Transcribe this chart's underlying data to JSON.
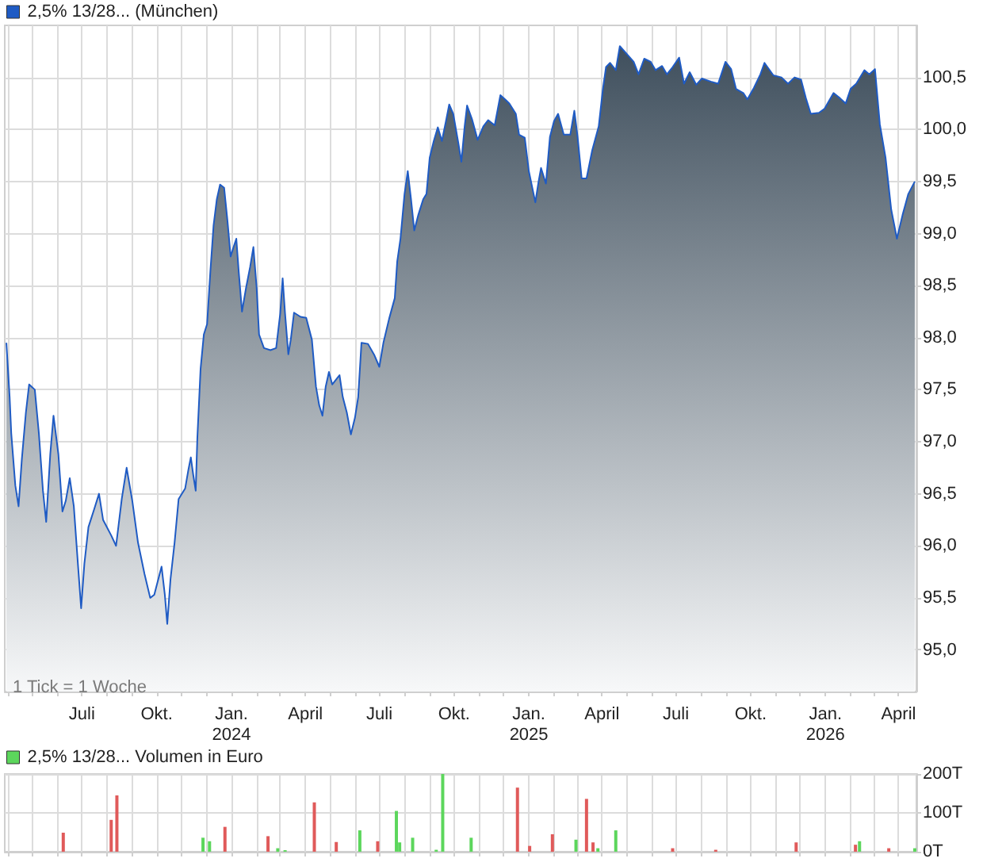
{
  "chart_data": [
    {
      "type": "area",
      "legend": "top left",
      "grid": true,
      "marker": "none",
      "annotations": [
        "1 Tick = 1 Woche"
      ],
      "xlim": [
        "2023-03-28",
        "2026-04-23"
      ],
      "xticks": [
        {
          "value": "2023-04-01",
          "label": null
        },
        {
          "value": "2023-05-01",
          "label": null
        },
        {
          "value": "2023-06-01",
          "label": null
        },
        {
          "value": "2023-07-01",
          "label": "Juli"
        },
        {
          "value": "2023-08-01",
          "label": null
        },
        {
          "value": "2023-09-01",
          "label": null
        },
        {
          "value": "2023-10-01",
          "label": "Okt."
        },
        {
          "value": "2023-11-01",
          "label": null
        },
        {
          "value": "2023-12-01",
          "label": null
        },
        {
          "value": "2024-01-01",
          "label": "Jan.\n2024"
        },
        {
          "value": "2024-02-01",
          "label": null
        },
        {
          "value": "2024-03-01",
          "label": null
        },
        {
          "value": "2024-04-01",
          "label": "April"
        },
        {
          "value": "2024-05-01",
          "label": null
        },
        {
          "value": "2024-06-01",
          "label": null
        },
        {
          "value": "2024-07-01",
          "label": "Juli"
        },
        {
          "value": "2024-08-01",
          "label": null
        },
        {
          "value": "2024-09-01",
          "label": null
        },
        {
          "value": "2024-10-01",
          "label": "Okt."
        },
        {
          "value": "2024-11-01",
          "label": null
        },
        {
          "value": "2024-12-01",
          "label": null
        },
        {
          "value": "2025-01-01",
          "label": "Jan.\n2025"
        },
        {
          "value": "2025-02-01",
          "label": null
        },
        {
          "value": "2025-03-01",
          "label": null
        },
        {
          "value": "2025-04-01",
          "label": "April"
        },
        {
          "value": "2025-05-01",
          "label": null
        },
        {
          "value": "2025-06-01",
          "label": null
        },
        {
          "value": "2025-07-01",
          "label": "Juli"
        },
        {
          "value": "2025-08-01",
          "label": null
        },
        {
          "value": "2025-09-01",
          "label": null
        },
        {
          "value": "2025-10-01",
          "label": "Okt."
        },
        {
          "value": "2025-11-01",
          "label": null
        },
        {
          "value": "2025-12-01",
          "label": null
        },
        {
          "value": "2026-01-01",
          "label": "Jan.\n2026"
        },
        {
          "value": "2026-02-01",
          "label": null
        },
        {
          "value": "2026-03-01",
          "label": null
        },
        {
          "value": "2026-04-01",
          "label": "April"
        }
      ],
      "ylim": [
        94.6,
        101.0
      ],
      "yticks": [
        {
          "value": 95,
          "label": "95,0"
        },
        {
          "value": 95.5,
          "label": "95,5"
        },
        {
          "value": 96,
          "label": "96,0"
        },
        {
          "value": 96.5,
          "label": "96,5"
        },
        {
          "value": 97,
          "label": "97,0"
        },
        {
          "value": 97.5,
          "label": "97,5"
        },
        {
          "value": 98,
          "label": "98,0"
        },
        {
          "value": 98.5,
          "label": "98,5"
        },
        {
          "value": 99,
          "label": "99,0"
        },
        {
          "value": 99.5,
          "label": "99,5"
        },
        {
          "value": 100,
          "label": "100,0"
        },
        {
          "value": 100.5,
          "label": "100,5"
        }
      ],
      "series": [
        {
          "name": "2,5% 13/28... (München)",
          "color": "#1f5bc4",
          "x": [
            "2023-03-30",
            "2023-04-03",
            "2023-04-05",
            "2023-04-10",
            "2023-04-14",
            "2023-04-18",
            "2023-04-23",
            "2023-04-27",
            "2023-05-04",
            "2023-05-09",
            "2023-05-14",
            "2023-05-18",
            "2023-05-23",
            "2023-05-27",
            "2023-06-02",
            "2023-06-07",
            "2023-06-11",
            "2023-06-16",
            "2023-06-21",
            "2023-06-26",
            "2023-06-30",
            "2023-07-04",
            "2023-07-09",
            "2023-07-16",
            "2023-07-22",
            "2023-07-27",
            "2023-08-06",
            "2023-08-12",
            "2023-08-19",
            "2023-08-25",
            "2023-09-01",
            "2023-09-08",
            "2023-09-16",
            "2023-09-23",
            "2023-09-28",
            "2023-10-03",
            "2023-10-07",
            "2023-10-11",
            "2023-10-14",
            "2023-10-18",
            "2023-10-23",
            "2023-10-28",
            "2023-11-05",
            "2023-11-09",
            "2023-11-12",
            "2023-11-15",
            "2023-11-18",
            "2023-11-20",
            "2023-11-24",
            "2023-11-28",
            "2023-12-02",
            "2023-12-06",
            "2023-12-10",
            "2023-12-14",
            "2023-12-18",
            "2023-12-23",
            "2023-12-27",
            "2023-12-31",
            "2024-01-04",
            "2024-01-07",
            "2024-01-10",
            "2024-01-14",
            "2024-01-19",
            "2024-01-24",
            "2024-01-28",
            "2024-02-01",
            "2024-02-04",
            "2024-02-10",
            "2024-02-18",
            "2024-02-25",
            "2024-03-01",
            "2024-03-04",
            "2024-03-07",
            "2024-03-11",
            "2024-03-14",
            "2024-03-18",
            "2024-03-26",
            "2024-04-02",
            "2024-04-09",
            "2024-04-14",
            "2024-04-18",
            "2024-04-22",
            "2024-04-26",
            "2024-04-30",
            "2024-05-04",
            "2024-05-08",
            "2024-05-13",
            "2024-05-17",
            "2024-05-22",
            "2024-05-27",
            "2024-06-01",
            "2024-06-05",
            "2024-06-09",
            "2024-06-17",
            "2024-06-25",
            "2024-07-01",
            "2024-07-06",
            "2024-07-13",
            "2024-07-20",
            "2024-07-23",
            "2024-07-27",
            "2024-08-01",
            "2024-08-05",
            "2024-08-09",
            "2024-08-13",
            "2024-08-18",
            "2024-08-24",
            "2024-08-28",
            "2024-09-01",
            "2024-09-06",
            "2024-09-11",
            "2024-09-16",
            "2024-09-21",
            "2024-09-25",
            "2024-09-30",
            "2024-10-06",
            "2024-10-10",
            "2024-10-14",
            "2024-10-17",
            "2024-10-23",
            "2024-10-30",
            "2024-11-06",
            "2024-11-12",
            "2024-11-20",
            "2024-11-27",
            "2024-12-04",
            "2024-12-08",
            "2024-12-16",
            "2024-12-20",
            "2024-12-27",
            "2025-01-01",
            "2025-01-09",
            "2025-01-13",
            "2025-01-16",
            "2025-01-22",
            "2025-01-27",
            "2025-02-01",
            "2025-02-06",
            "2025-02-13",
            "2025-02-21",
            "2025-02-26",
            "2025-03-02",
            "2025-03-07",
            "2025-03-13",
            "2025-03-20",
            "2025-03-28",
            "2025-04-02",
            "2025-04-06",
            "2025-04-11",
            "2025-04-18",
            "2025-04-23",
            "2025-05-01",
            "2025-05-10",
            "2025-05-16",
            "2025-05-23",
            "2025-05-31",
            "2025-06-06",
            "2025-06-14",
            "2025-06-20",
            "2025-06-27",
            "2025-07-05",
            "2025-07-11",
            "2025-07-18",
            "2025-07-26",
            "2025-08-02",
            "2025-08-13",
            "2025-08-22",
            "2025-08-31",
            "2025-09-07",
            "2025-09-13",
            "2025-09-22",
            "2025-09-27",
            "2025-10-05",
            "2025-10-13",
            "2025-10-18",
            "2025-10-29",
            "2025-11-08",
            "2025-11-16",
            "2025-11-24",
            "2025-12-02",
            "2025-12-08",
            "2025-12-14",
            "2025-12-24",
            "2025-12-31",
            "2026-01-11",
            "2026-01-19",
            "2026-01-26",
            "2026-02-01",
            "2026-02-08",
            "2026-02-18",
            "2026-02-24",
            "2026-03-03",
            "2026-03-09",
            "2026-03-16",
            "2026-03-23",
            "2026-03-30",
            "2026-04-06",
            "2026-04-13",
            "2026-04-21"
          ],
          "values": [
            97.95,
            97.43,
            97.08,
            96.58,
            96.38,
            96.83,
            97.28,
            97.55,
            97.5,
            97.08,
            96.53,
            96.23,
            96.88,
            97.25,
            96.88,
            96.33,
            96.43,
            96.65,
            96.38,
            95.83,
            95.4,
            95.83,
            96.18,
            96.35,
            96.5,
            96.25,
            96.1,
            96.0,
            96.45,
            96.75,
            96.43,
            96.03,
            95.73,
            95.5,
            95.53,
            95.68,
            95.8,
            95.53,
            95.25,
            95.68,
            96.03,
            96.45,
            96.55,
            96.73,
            96.85,
            96.68,
            96.53,
            97.03,
            97.7,
            98.03,
            98.13,
            98.63,
            99.08,
            99.33,
            99.47,
            99.44,
            99.13,
            98.78,
            98.88,
            98.95,
            98.63,
            98.25,
            98.48,
            98.68,
            98.87,
            98.48,
            98.03,
            97.9,
            97.88,
            97.9,
            98.23,
            98.57,
            98.23,
            97.84,
            97.98,
            98.24,
            98.2,
            98.19,
            97.98,
            97.53,
            97.35,
            97.25,
            97.53,
            97.67,
            97.55,
            97.59,
            97.64,
            97.43,
            97.28,
            97.07,
            97.23,
            97.43,
            97.95,
            97.94,
            97.83,
            97.72,
            97.95,
            98.18,
            98.38,
            98.73,
            98.95,
            99.38,
            99.6,
            99.33,
            99.03,
            99.18,
            99.33,
            99.38,
            99.73,
            99.89,
            100.02,
            99.89,
            100.08,
            100.24,
            100.15,
            99.88,
            99.69,
            100.03,
            100.23,
            100.1,
            99.9,
            100.03,
            100.09,
            100.04,
            100.33,
            100.28,
            100.25,
            100.15,
            99.95,
            99.92,
            99.6,
            99.3,
            99.5,
            99.63,
            99.48,
            99.93,
            100.08,
            100.15,
            99.95,
            99.95,
            100.18,
            99.93,
            99.53,
            99.53,
            99.8,
            100.03,
            100.38,
            100.6,
            100.64,
            100.57,
            100.8,
            100.73,
            100.65,
            100.53,
            100.68,
            100.65,
            100.57,
            100.61,
            100.53,
            100.6,
            100.69,
            100.44,
            100.55,
            100.43,
            100.49,
            100.46,
            100.44,
            100.65,
            100.58,
            100.39,
            100.35,
            100.29,
            100.4,
            100.53,
            100.64,
            100.52,
            100.5,
            100.44,
            100.5,
            100.48,
            100.3,
            100.15,
            100.16,
            100.2,
            100.35,
            100.3,
            100.25,
            100.39,
            100.44,
            100.57,
            100.53,
            100.58,
            100.05,
            99.73,
            99.23,
            98.95,
            99.18,
            99.38,
            99.5
          ]
        }
      ]
    },
    {
      "type": "bar",
      "legend": "top left",
      "grid": true,
      "tick_labels": "y",
      "xlim": [
        "2023-03-28",
        "2026-04-23"
      ],
      "xticks": [
        {
          "value": "2023-04-01",
          "label": null
        },
        {
          "value": "2023-05-01",
          "label": null
        },
        {
          "value": "2023-06-01",
          "label": null
        },
        {
          "value": "2023-07-01",
          "label": null
        },
        {
          "value": "2023-08-01",
          "label": null
        },
        {
          "value": "2023-09-01",
          "label": null
        },
        {
          "value": "2023-10-01",
          "label": null
        },
        {
          "value": "2023-11-01",
          "label": null
        },
        {
          "value": "2023-12-01",
          "label": null
        },
        {
          "value": "2024-01-01",
          "label": null
        },
        {
          "value": "2024-02-01",
          "label": null
        },
        {
          "value": "2024-03-01",
          "label": null
        },
        {
          "value": "2024-04-01",
          "label": null
        },
        {
          "value": "2024-05-01",
          "label": null
        },
        {
          "value": "2024-06-01",
          "label": null
        },
        {
          "value": "2024-07-01",
          "label": null
        },
        {
          "value": "2024-08-01",
          "label": null
        },
        {
          "value": "2024-09-01",
          "label": null
        },
        {
          "value": "2024-10-01",
          "label": null
        },
        {
          "value": "2024-11-01",
          "label": null
        },
        {
          "value": "2024-12-01",
          "label": null
        },
        {
          "value": "2025-01-01",
          "label": null
        },
        {
          "value": "2025-02-01",
          "label": null
        },
        {
          "value": "2025-03-01",
          "label": null
        },
        {
          "value": "2025-04-01",
          "label": null
        },
        {
          "value": "2025-05-01",
          "label": null
        },
        {
          "value": "2025-06-01",
          "label": null
        },
        {
          "value": "2025-07-01",
          "label": null
        },
        {
          "value": "2025-08-01",
          "label": null
        },
        {
          "value": "2025-09-01",
          "label": null
        },
        {
          "value": "2025-10-01",
          "label": null
        },
        {
          "value": "2025-11-01",
          "label": null
        },
        {
          "value": "2025-12-01",
          "label": null
        },
        {
          "value": "2026-01-01",
          "label": null
        },
        {
          "value": "2026-02-01",
          "label": null
        },
        {
          "value": "2026-03-01",
          "label": null
        },
        {
          "value": "2026-04-01",
          "label": null
        }
      ],
      "ylim": [
        0,
        200
      ],
      "yticks": [
        {
          "value": 0,
          "label": "0T"
        },
        {
          "value": 100,
          "label": "100T"
        },
        {
          "value": 200,
          "label": "200T"
        }
      ],
      "series": [
        {
          "name": "2,5% 13/28... Volumen in Euro",
          "color": "#5cd65c",
          "x": [
            "2023-06-08",
            "2023-08-06",
            "2023-08-13",
            "2023-11-27",
            "2023-12-05",
            "2023-12-24",
            "2024-02-15",
            "2024-02-27",
            "2024-03-07",
            "2024-04-12",
            "2024-05-09",
            "2024-06-07",
            "2024-06-29",
            "2024-07-22",
            "2024-07-26",
            "2024-08-11",
            "2024-09-09",
            "2024-09-17",
            "2024-10-22",
            "2024-12-18",
            "2025-01-02",
            "2025-01-30",
            "2025-02-28",
            "2025-03-13",
            "2025-03-21",
            "2025-03-27",
            "2025-04-18",
            "2025-06-27",
            "2025-08-19",
            "2025-11-26",
            "2026-02-07",
            "2026-02-12",
            "2026-03-20",
            "2026-04-21"
          ],
          "values": [
            49,
            82,
            145,
            36,
            27,
            64,
            40,
            9,
            4,
            127,
            25,
            55,
            27,
            105,
            24,
            36,
            5,
            200,
            36,
            165,
            15,
            45,
            31,
            136,
            24,
            9,
            55,
            9,
            5,
            24,
            18,
            27,
            9,
            9
          ],
          "colors": [
            "#e05a5a",
            "#e05a5a",
            "#e05a5a",
            "#5cd65c",
            "#5cd65c",
            "#e05a5a",
            "#e05a5a",
            "#5cd65c",
            "#5cd65c",
            "#e05a5a",
            "#e05a5a",
            "#5cd65c",
            "#e05a5a",
            "#5cd65c",
            "#5cd65c",
            "#5cd65c",
            "#5cd65c",
            "#5cd65c",
            "#5cd65c",
            "#e05a5a",
            "#e05a5a",
            "#e05a5a",
            "#5cd65c",
            "#e05a5a",
            "#e05a5a",
            "#5cd65c",
            "#5cd65c",
            "#e05a5a",
            "#e05a5a",
            "#e05a5a",
            "#e05a5a",
            "#5cd65c",
            "#e05a5a",
            "#5cd65c"
          ]
        }
      ]
    }
  ]
}
